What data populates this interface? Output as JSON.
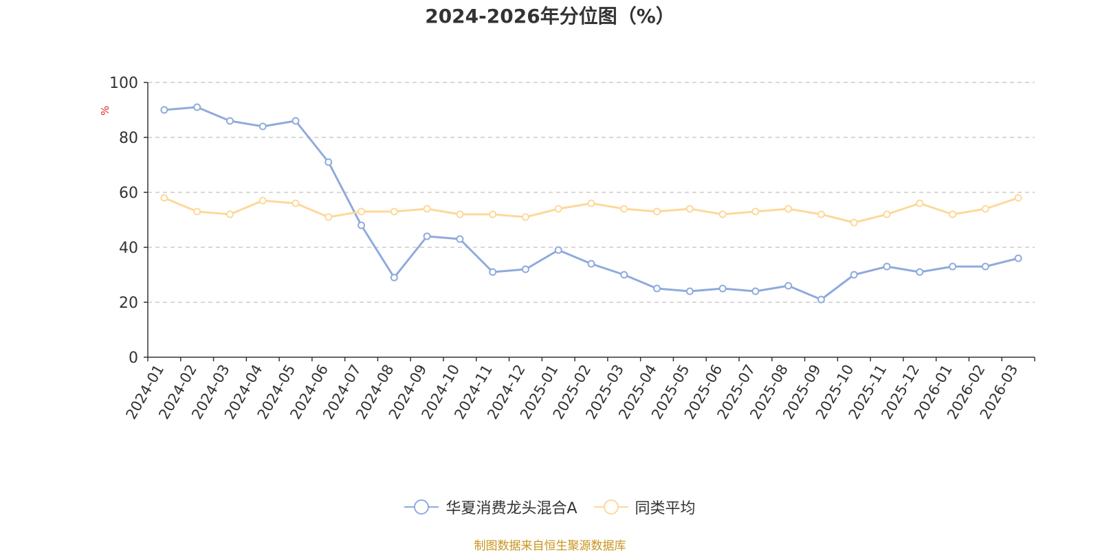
{
  "chart_data": {
    "type": "line",
    "title": "2024-2026年分位图（%）",
    "ylabel": "%",
    "ylim": [
      0,
      100
    ],
    "yticks": [
      0,
      20,
      40,
      60,
      80,
      100
    ],
    "grid": "horizontal-dashed",
    "legend_position": "bottom-center",
    "categories": [
      "2024-01",
      "2024-02",
      "2024-03",
      "2024-04",
      "2024-05",
      "2024-06",
      "2024-07",
      "2024-08",
      "2024-09",
      "2024-10",
      "2024-11",
      "2024-12",
      "2025-01",
      "2025-02",
      "2025-03",
      "2025-04",
      "2025-05",
      "2025-06",
      "2025-07",
      "2025-08",
      "2025-09",
      "2025-10",
      "2025-11",
      "2025-12",
      "2026-01",
      "2026-02",
      "2026-03"
    ],
    "series": [
      {
        "name": "华夏消费龙头混合A",
        "color": "#8faadc",
        "values": [
          90,
          91,
          86,
          84,
          86,
          71,
          48,
          29,
          44,
          43,
          31,
          32,
          39,
          34,
          30,
          25,
          24,
          25,
          24,
          26,
          21,
          30,
          33,
          31,
          33,
          33,
          36
        ]
      },
      {
        "name": "同类平均",
        "color": "#fdd89a",
        "values": [
          58,
          53,
          52,
          57,
          56,
          51,
          53,
          53,
          54,
          52,
          52,
          51,
          54,
          56,
          54,
          53,
          54,
          52,
          53,
          54,
          52,
          49,
          52,
          56,
          52,
          54,
          58
        ]
      }
    ]
  },
  "source_note": "制图数据来自恒生聚源数据库"
}
